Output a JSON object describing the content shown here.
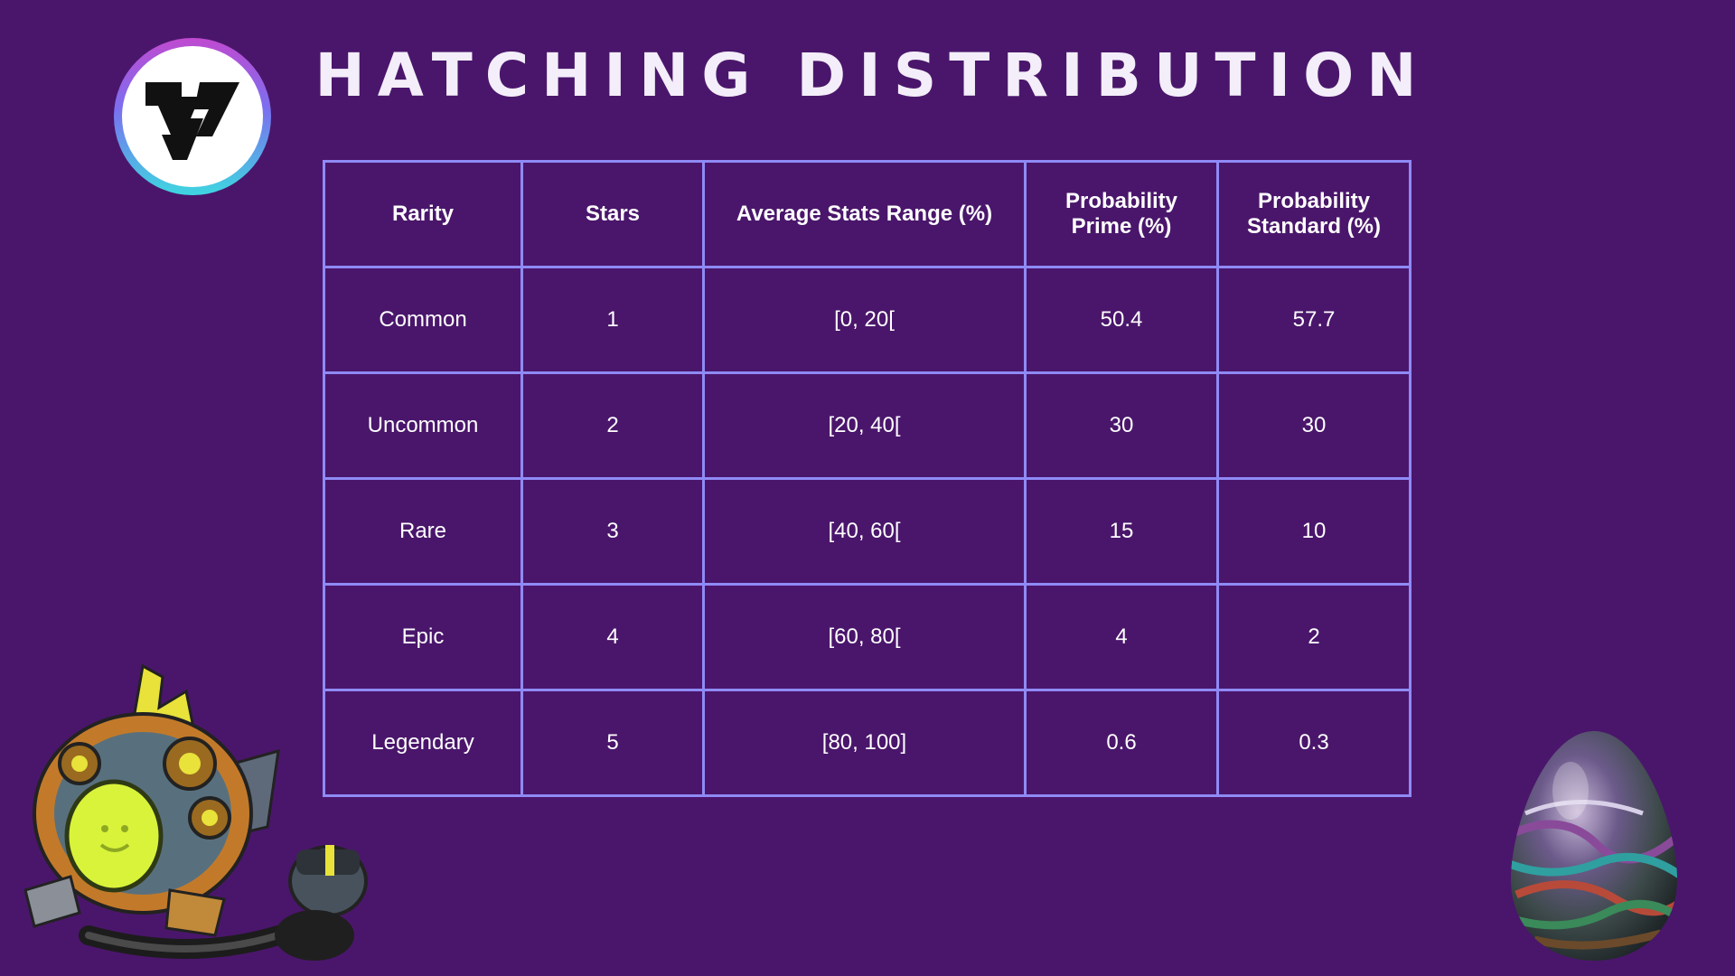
{
  "title": "HATCHING DISTRIBUTION",
  "colors": {
    "background": "#4a166b",
    "table_border": "#8f8af5",
    "text": "#ffffff"
  },
  "icons": {
    "logo": "brand-logo-icon",
    "robot": "robot-creature-illustration",
    "egg": "marbled-egg-illustration"
  },
  "table": {
    "headers": [
      "Rarity",
      "Stars",
      "Average Stats Range (%)",
      "Probability Prime (%)",
      "Probability Standard (%)"
    ],
    "rows": [
      [
        "Common",
        "1",
        "[0, 20[",
        "50.4",
        "57.7"
      ],
      [
        "Uncommon",
        "2",
        "[20, 40[",
        "30",
        "30"
      ],
      [
        "Rare",
        "3",
        "[40, 60[",
        "15",
        "10"
      ],
      [
        "Epic",
        "4",
        "[60, 80[",
        "4",
        "2"
      ],
      [
        "Legendary",
        "5",
        "[80, 100]",
        "0.6",
        "0.3"
      ]
    ]
  }
}
